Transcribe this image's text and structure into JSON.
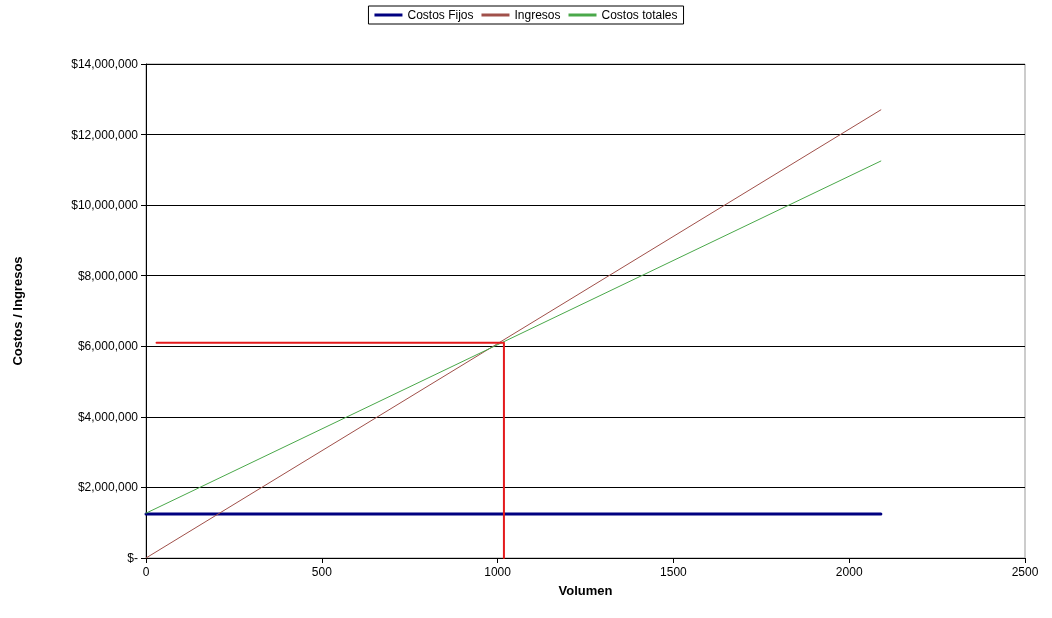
{
  "chart_data": {
    "type": "line",
    "xlabel": "Volumen",
    "ylabel": "Costos / Ingresos",
    "xlim": [
      0,
      2500
    ],
    "xticks": [
      0,
      500,
      1000,
      1500,
      2000,
      2500
    ],
    "ylim": [
      0,
      14000000
    ],
    "yticks": [
      {
        "value": 0,
        "label": "$-"
      },
      {
        "value": 2000000,
        "label": "$2,000,000"
      },
      {
        "value": 4000000,
        "label": "$4,000,000"
      },
      {
        "value": 6000000,
        "label": "$6,000,000"
      },
      {
        "value": 8000000,
        "label": "$8,000,000"
      },
      {
        "value": 10000000,
        "label": "$10,000,000"
      },
      {
        "value": 12000000,
        "label": "$12,000,000"
      },
      {
        "value": 14000000,
        "label": "$14,000,000"
      }
    ],
    "grid": "y",
    "legend": "top",
    "marker": "none",
    "line_style": "solid",
    "series": [
      {
        "name": "Costos Fijos",
        "color": "#000080",
        "x": [
          0,
          2090
        ],
        "values": [
          1250000,
          1250000
        ]
      },
      {
        "name": "Ingresos",
        "color": "#a0504a",
        "x": [
          0,
          2090
        ],
        "values": [
          0,
          12700000
        ]
      },
      {
        "name": "Costos totales",
        "color": "#4aa84a",
        "x": [
          0,
          2090
        ],
        "values": [
          1270000,
          11250000
        ]
      },
      {
        "color": "#e41a1c",
        "x": [
          30,
          1018,
          1018
        ],
        "values": [
          6100000,
          6100000,
          0
        ]
      }
    ]
  }
}
